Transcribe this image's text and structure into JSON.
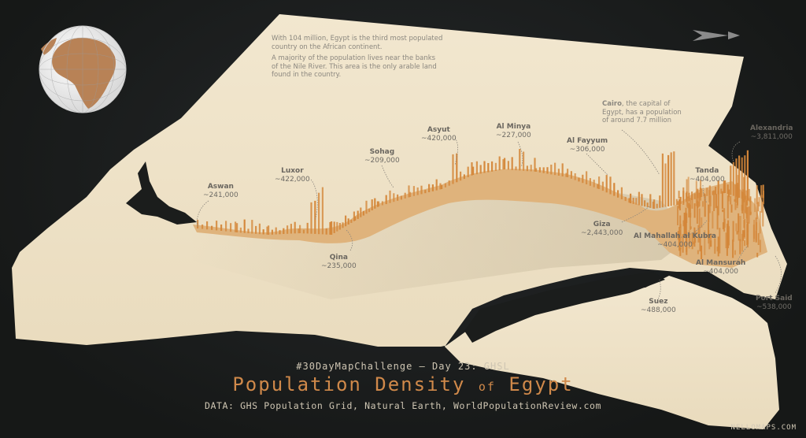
{
  "annotations": {
    "intro": [
      "With 104 million, Egypt is the third most populated",
      "country on the African continent."
    ],
    "nile": [
      "A majority of the population lives near the banks",
      "of the Nile River. This area is the only arable land",
      "found in the country."
    ],
    "cairo": {
      "name": "Cairo",
      "rest": ", the capital of",
      "line2": "Egypt, has a population",
      "line3": "of around 7.7 million"
    }
  },
  "cities": [
    {
      "name": "Aswan",
      "value": "~241,000"
    },
    {
      "name": "Luxor",
      "value": "~422,000"
    },
    {
      "name": "Qina",
      "value": "~235,000"
    },
    {
      "name": "Sohag",
      "value": "~209,000"
    },
    {
      "name": "Asyut",
      "value": "~420,000"
    },
    {
      "name": "Al Minya",
      "value": "~227,000"
    },
    {
      "name": "Al Fayyum",
      "value": "~306,000"
    },
    {
      "name": "Giza",
      "value": "~2,443,000"
    },
    {
      "name": "Alexandria",
      "value": "~3,811,000"
    },
    {
      "name": "Tanda",
      "value": "~404,000"
    },
    {
      "name": "Al Mahallah al Kubra",
      "value": "~404,000"
    },
    {
      "name": "Al Mansurah",
      "value": "~404,000"
    },
    {
      "name": "Suez",
      "value": "~488,000"
    },
    {
      "name": "Port Said",
      "value": "~538,000"
    }
  ],
  "footer": {
    "hashtag": "#30DayMapChallenge – Day 23: GHSL",
    "title_a": "Population Density",
    "title_of": "of",
    "title_b": "Egypt",
    "source": "DATA: GHS Population Grid, Natural Earth, WorldPopulationReview.com",
    "credit": "NELLOMAPS.COM"
  },
  "colors": {
    "land": "#efe3c8",
    "spikes": "#d4873a",
    "background": "#1b1d1c"
  },
  "icons": [
    "globe-inset-icon",
    "north-arrow-icon"
  ]
}
